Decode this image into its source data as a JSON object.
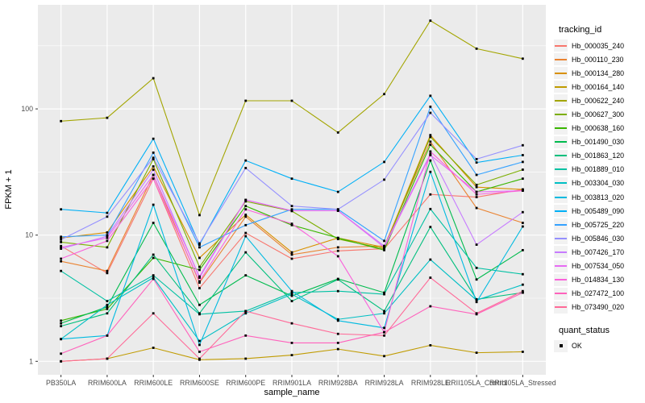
{
  "figure": {
    "legend": {
      "tracking_title": "tracking_id",
      "quant_title": "quant_status",
      "quant_ok_label": "OK"
    }
  },
  "chart_data": {
    "type": "line",
    "title": "",
    "xlabel": "sample_name",
    "ylabel": "FPKM + 1",
    "yscale": "log10",
    "ylim": [
      0.8,
      700
    ],
    "yticks": [
      1,
      10,
      100
    ],
    "grid": true,
    "panel_color": "#EBEBEB",
    "gridline_color": "#FFFFFF",
    "tick_label_color": "#4D4D4D",
    "marker": "black-square",
    "legend_position": "right",
    "categories": [
      "PB350LA",
      "RRIM600LA",
      "RRIM600LE",
      "RRIM600SE",
      "RRIM600PE",
      "RRIM901LA",
      "RRIM928BA",
      "RRIM928LA",
      "RRIM928LE",
      "RRII105LA_Control",
      "RRII105LA_Stressed"
    ],
    "series": [
      {
        "name": "Hb_000035_240",
        "color": "#F8766D",
        "values": [
          8.2,
          5.0,
          28,
          3.8,
          10.4,
          6.5,
          7.5,
          7.8,
          21,
          20,
          23
        ]
      },
      {
        "name": "Hb_000110_230",
        "color": "#EA8331",
        "values": [
          6.2,
          5.2,
          30,
          4.2,
          14,
          7.0,
          8.0,
          8.2,
          55,
          16.4,
          12.5
        ]
      },
      {
        "name": "Hb_000134_280",
        "color": "#D89000",
        "values": [
          9.5,
          10.5,
          35,
          6.6,
          14.5,
          7.3,
          9.5,
          8.0,
          62,
          24,
          23
        ]
      },
      {
        "name": "Hb_000164_140",
        "color": "#C09B00",
        "values": [
          1.0,
          1.05,
          1.28,
          1.03,
          1.05,
          1.12,
          1.25,
          1.1,
          1.34,
          1.17,
          1.19
        ]
      },
      {
        "name": "Hb_000622_240",
        "color": "#A3A500",
        "values": [
          80,
          85,
          175,
          14.4,
          116,
          116,
          65,
          131,
          500,
          300,
          250
        ]
      },
      {
        "name": "Hb_000627_300",
        "color": "#7CAE00",
        "values": [
          8.8,
          8.0,
          40,
          5.6,
          18.5,
          15.5,
          9.3,
          7.8,
          60,
          25,
          33
        ]
      },
      {
        "name": "Hb_000638_160",
        "color": "#39B600",
        "values": [
          2.1,
          2.6,
          6.6,
          5.3,
          17,
          12,
          9.5,
          7.6,
          52,
          22,
          28
        ]
      },
      {
        "name": "Hb_001490_030",
        "color": "#00BB4E",
        "values": [
          2.0,
          2.7,
          12.5,
          2.8,
          4.8,
          3.3,
          4.5,
          3.5,
          39,
          4.45,
          7.6
        ]
      },
      {
        "name": "Hb_001863_120",
        "color": "#00BF7D",
        "values": [
          1.9,
          2.4,
          7.0,
          2.4,
          7.3,
          3.0,
          4.45,
          2.5,
          11.6,
          3.1,
          3.5
        ]
      },
      {
        "name": "Hb_001889_010",
        "color": "#00C1A3",
        "values": [
          5.2,
          3.0,
          4.8,
          2.36,
          2.5,
          3.5,
          3.6,
          3.4,
          16.1,
          5.5,
          4.9
        ]
      },
      {
        "name": "Hb_003304_030",
        "color": "#00BFC4",
        "values": [
          1.5,
          2.8,
          4.6,
          1.45,
          2.4,
          3.4,
          2.15,
          2.4,
          6.4,
          3.05,
          4.05
        ]
      },
      {
        "name": "Hb_003813_020",
        "color": "#00BAE0",
        "values": [
          1.5,
          1.6,
          17.4,
          1.35,
          9.8,
          3.6,
          2.1,
          1.84,
          31.7,
          2.95,
          11.7
        ]
      },
      {
        "name": "Hb_005489_090",
        "color": "#00B0F6",
        "values": [
          16,
          15,
          58,
          8.4,
          39,
          28,
          22,
          38,
          127,
          37.6,
          43
        ]
      },
      {
        "name": "Hb_005725_220",
        "color": "#35A2FF",
        "values": [
          9.7,
          10,
          45,
          8.0,
          12,
          16,
          16,
          9.0,
          104,
          30,
          38
        ]
      },
      {
        "name": "Hb_005846_030",
        "color": "#9590FF",
        "values": [
          9.2,
          14,
          41,
          8.6,
          34,
          17,
          16,
          27.5,
          93,
          40,
          51.5
        ]
      },
      {
        "name": "Hb_007426_170",
        "color": "#C77CFF",
        "values": [
          7.8,
          9.8,
          33,
          4.6,
          19,
          15.6,
          15.6,
          8.2,
          44,
          8.4,
          15.2
        ]
      },
      {
        "name": "Hb_007534_050",
        "color": "#E76BF3",
        "values": [
          8.0,
          9.5,
          30,
          4.7,
          19,
          15.6,
          15.6,
          8.0,
          43,
          22,
          22.5
        ]
      },
      {
        "name": "Hb_014834_130",
        "color": "#FA62DB",
        "values": [
          6.5,
          9.0,
          28,
          4.3,
          16,
          12.3,
          6.8,
          1.7,
          46,
          21,
          22.5
        ]
      },
      {
        "name": "Hb_027472_100",
        "color": "#FF62BC",
        "values": [
          1.15,
          1.6,
          4.5,
          1.19,
          1.6,
          1.4,
          1.4,
          1.7,
          2.73,
          2.36,
          3.5
        ]
      },
      {
        "name": "Hb_073490_020",
        "color": "#FF6A98",
        "values": [
          1.0,
          1.05,
          2.4,
          1.05,
          2.5,
          2.0,
          1.65,
          1.6,
          4.6,
          2.4,
          3.6
        ]
      }
    ]
  }
}
